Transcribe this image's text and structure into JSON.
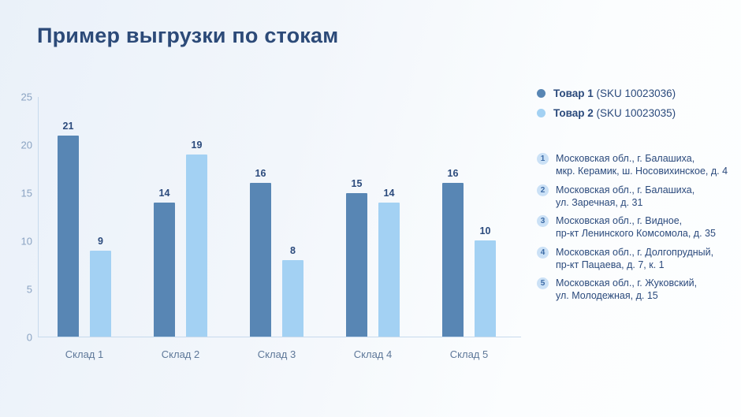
{
  "title": "Пример выгрузки по стокам",
  "colors": {
    "series1": "#5886b4",
    "series2": "#a3d1f3",
    "navy_text": "#2b4a7c",
    "axis_line": "#c7daed",
    "ytick_text": "#8aa3c2",
    "xlabel_text": "#5e7899",
    "loc_badge_bg": "#cbe1f6",
    "loc_badge_text": "#3c6ba6"
  },
  "chart_data": {
    "type": "bar",
    "title": "Пример выгрузки по стокам",
    "categories": [
      "Склад 1",
      "Склад 2",
      "Склад 3",
      "Склад 4",
      "Склад 5"
    ],
    "series": [
      {
        "name": "Товар 1 (SKU 10023036)",
        "color": "#5886b4",
        "values": [
          21,
          14,
          16,
          15,
          16
        ]
      },
      {
        "name": "Товар 2 (SKU 10023035)",
        "color": "#a3d1f3",
        "values": [
          9,
          19,
          8,
          14,
          10
        ]
      }
    ],
    "xlabel": "",
    "ylabel": "",
    "ylim": [
      0,
      25
    ],
    "yticks": [
      0,
      5,
      10,
      15,
      20,
      25
    ],
    "grid": false,
    "bar_value_labels": true,
    "legend_position": "top-right"
  },
  "legend": {
    "items": [
      {
        "name": "Товар 1",
        "sku": "(SKU 10023036)"
      },
      {
        "name": "Товар 2",
        "sku": "(SKU 10023035)"
      }
    ]
  },
  "locations": [
    {
      "num": "1",
      "line1": "Московская обл., г. Балашиха,",
      "line2": "мкр. Керамик, ш. Носовихинское, д. 4"
    },
    {
      "num": "2",
      "line1": "Московская обл., г. Балашиха,",
      "line2": "ул. Заречная, д. 31"
    },
    {
      "num": "3",
      "line1": "Московская обл., г. Видное,",
      "line2": "пр-кт Ленинского Комсомола, д. 35"
    },
    {
      "num": "4",
      "line1": "Московская обл., г. Долгопрудный,",
      "line2": "пр-кт Пацаева, д. 7, к. 1"
    },
    {
      "num": "5",
      "line1": "Московская обл., г. Жуковский,",
      "line2": "ул. Молодежная, д. 15"
    }
  ]
}
